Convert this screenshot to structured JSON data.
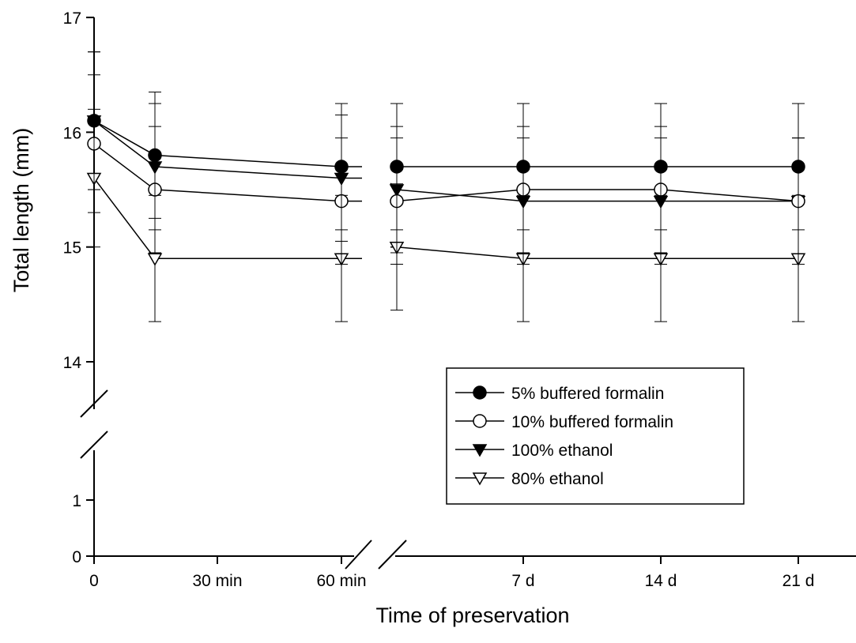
{
  "chart_data": {
    "type": "line",
    "title": "",
    "xlabel": "Time of preservation",
    "ylabel": "Total length (mm)",
    "x_tick_labels": [
      "0",
      "30 min",
      "60 min",
      "7 d",
      "14 d",
      "21 d"
    ],
    "y_tick_labels": [
      "0",
      "1",
      "14",
      "15",
      "16",
      "17"
    ],
    "ylim": [
      0,
      17
    ],
    "y_axis_break": [
      1.7,
      13.6
    ],
    "x_axis_break": "between 60 min and 7 d",
    "grid": false,
    "legend_position": "lower-right",
    "x_points": [
      "0",
      "15 min",
      "60 min",
      "1 d",
      "7 d",
      "14 d",
      "21 d"
    ],
    "series": [
      {
        "name": "5% buffered formalin",
        "marker": "filled-circle",
        "values": [
          16.1,
          15.8,
          15.7,
          15.7,
          15.7,
          15.7,
          15.7
        ],
        "error": [
          0.6,
          0.55,
          0.55,
          0.55,
          0.55,
          0.55,
          0.55
        ]
      },
      {
        "name": "10% buffered formalin",
        "marker": "open-circle",
        "values": [
          15.9,
          15.5,
          15.4,
          15.4,
          15.5,
          15.5,
          15.4
        ],
        "error": [
          0.6,
          0.55,
          0.55,
          0.55,
          0.55,
          0.55,
          0.55
        ]
      },
      {
        "name": "100% ethanol",
        "marker": "filled-triangle-down",
        "values": [
          16.1,
          15.7,
          15.6,
          15.5,
          15.4,
          15.4,
          15.4
        ],
        "error": [
          0.6,
          0.55,
          0.55,
          0.55,
          0.55,
          0.55,
          0.55
        ]
      },
      {
        "name": "80% ethanol",
        "marker": "open-triangle-down",
        "values": [
          15.6,
          14.9,
          14.9,
          15.0,
          14.9,
          14.9,
          14.9
        ],
        "error": [
          0.6,
          0.55,
          0.55,
          0.55,
          0.55,
          0.55,
          0.55
        ]
      }
    ]
  }
}
